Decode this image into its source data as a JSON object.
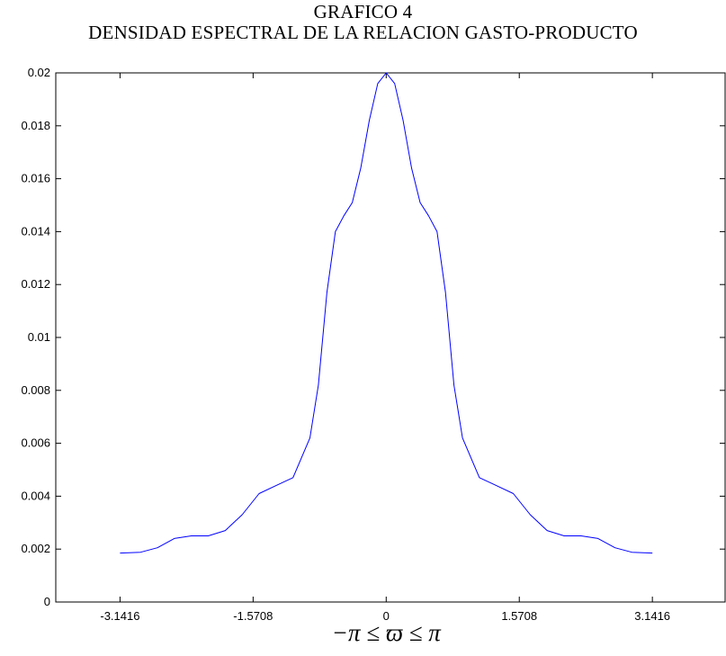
{
  "chart_data": {
    "type": "line",
    "title": "GRAFICO 4",
    "subtitle": "DENSIDAD ESPECTRAL DE LA RELACION GASTO-PRODUCTO",
    "xlabel": "−π ≤ ϖ ≤ π",
    "ylabel": "",
    "xlim": [
      -3.9,
      4.0
    ],
    "ylim": [
      0,
      0.02
    ],
    "grid": false,
    "x_ticks": [
      -3.1416,
      -1.5708,
      0,
      1.5708,
      3.1416
    ],
    "x_tick_labels": [
      "-3.1416",
      "-1.5708",
      "0",
      "1.5708",
      "3.1416"
    ],
    "y_ticks": [
      0,
      0.002,
      0.004,
      0.006,
      0.008,
      0.01,
      0.012,
      0.014,
      0.016,
      0.018,
      0.02
    ],
    "y_tick_labels": [
      "0",
      "0.002",
      "0.004",
      "0.006",
      "0.008",
      "0.01",
      "0.012",
      "0.014",
      "0.016",
      "0.018",
      "0.02"
    ],
    "series": [
      {
        "color": "#0000ff",
        "x": [
          -3.1416,
          -2.9,
          -2.7,
          -2.5,
          -2.3,
          -2.1,
          -1.9,
          -1.7,
          -1.5,
          -1.3,
          -1.1,
          -0.9,
          -0.8,
          -0.7,
          -0.6,
          -0.5,
          -0.4,
          -0.3,
          -0.2,
          -0.1,
          0,
          0.1,
          0.2,
          0.3,
          0.4,
          0.5,
          0.6,
          0.7,
          0.8,
          0.9,
          1.1,
          1.3,
          1.5,
          1.7,
          1.9,
          2.1,
          2.3,
          2.5,
          2.7,
          2.9,
          3.1416
        ],
        "y": [
          0.00185,
          0.00188,
          0.00205,
          0.0024,
          0.0025,
          0.0025,
          0.0027,
          0.0033,
          0.0041,
          0.0044,
          0.0047,
          0.0062,
          0.0082,
          0.0117,
          0.014,
          0.0146,
          0.0151,
          0.0164,
          0.0182,
          0.0196,
          0.02,
          0.0196,
          0.0182,
          0.0164,
          0.0151,
          0.0146,
          0.014,
          0.0117,
          0.0082,
          0.0062,
          0.0047,
          0.0044,
          0.0041,
          0.0033,
          0.0027,
          0.0025,
          0.0025,
          0.0024,
          0.00205,
          0.00188,
          0.00185
        ]
      }
    ]
  }
}
